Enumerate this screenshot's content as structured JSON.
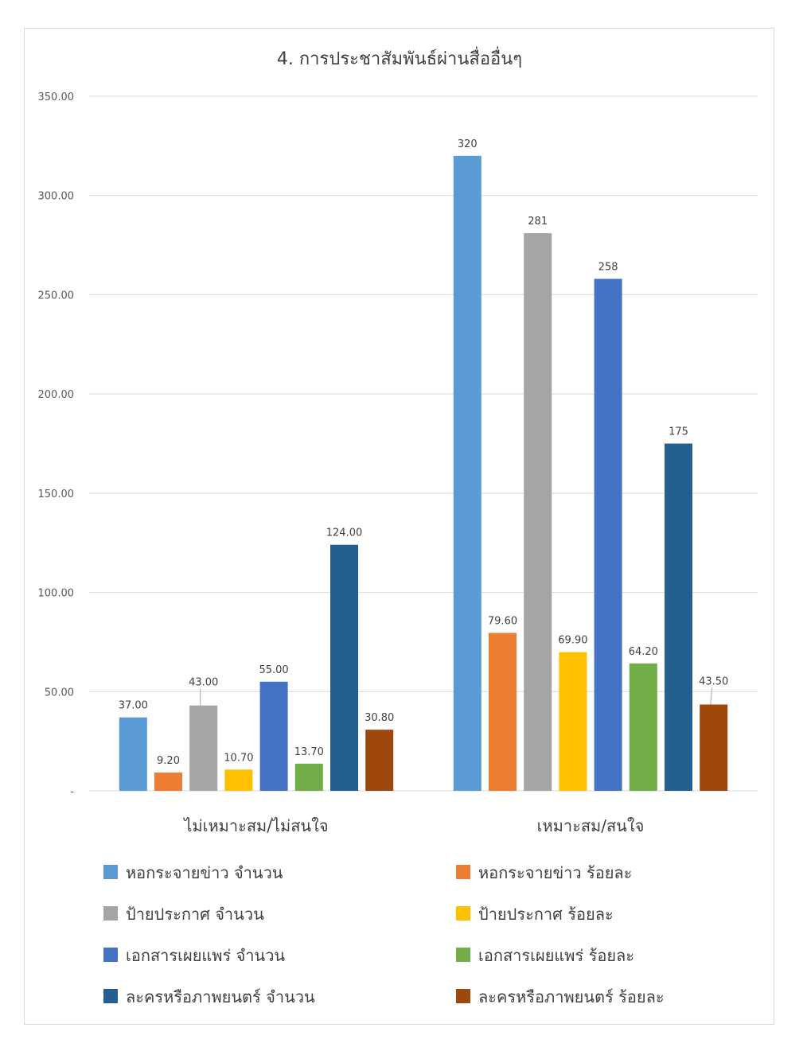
{
  "chart_data": {
    "type": "bar",
    "title": "4.  การประชาสัมพันธ์ผ่านสื่ออื่นๆ",
    "categories": [
      "ไม่เหมาะสม/ไม่สนใจ",
      "เหมาะสม/สนใจ"
    ],
    "ylim": [
      0,
      350
    ],
    "yticks": [
      0,
      50,
      100,
      150,
      200,
      250,
      300,
      350
    ],
    "ytick_labels": [
      "-",
      "50.00",
      "100.00",
      "150.00",
      "200.00",
      "250.00",
      "300.00",
      "350.00"
    ],
    "grid": true,
    "legend_position": "bottom",
    "series": [
      {
        "name": "หอกระจายข่าว จำนวน",
        "color": "#5B9BD5",
        "values": [
          37.0,
          320
        ],
        "labels": [
          "37.00",
          "320"
        ]
      },
      {
        "name": "หอกระจายข่าว ร้อยละ",
        "color": "#ED7D31",
        "values": [
          9.2,
          79.6
        ],
        "labels": [
          "9.20",
          "79.60"
        ]
      },
      {
        "name": "ป้ายประกาศ จำนวน",
        "color": "#A5A5A5",
        "values": [
          43.0,
          281
        ],
        "labels": [
          "43.00",
          "281"
        ]
      },
      {
        "name": "ป้ายประกาศ ร้อยละ",
        "color": "#FFC000",
        "values": [
          10.7,
          69.9
        ],
        "labels": [
          "10.70",
          "69.90"
        ]
      },
      {
        "name": "เอกสารเผยแพร่ จำนวน",
        "color": "#4472C4",
        "values": [
          55.0,
          258
        ],
        "labels": [
          "55.00",
          "258"
        ]
      },
      {
        "name": "เอกสารเผยแพร่ ร้อยละ",
        "color": "#70AD47",
        "values": [
          13.7,
          64.2
        ],
        "labels": [
          "13.70",
          "64.20"
        ]
      },
      {
        "name": "ละครหรือภาพยนตร์ จำนวน",
        "color": "#255E91",
        "values": [
          124.0,
          175
        ],
        "labels": [
          "124.00",
          "175"
        ]
      },
      {
        "name": "ละครหรือภาพยนตร์ ร้อยละ",
        "color": "#9E480E",
        "values": [
          30.8,
          43.5
        ],
        "labels": [
          "30.80",
          "43.50"
        ]
      }
    ]
  }
}
